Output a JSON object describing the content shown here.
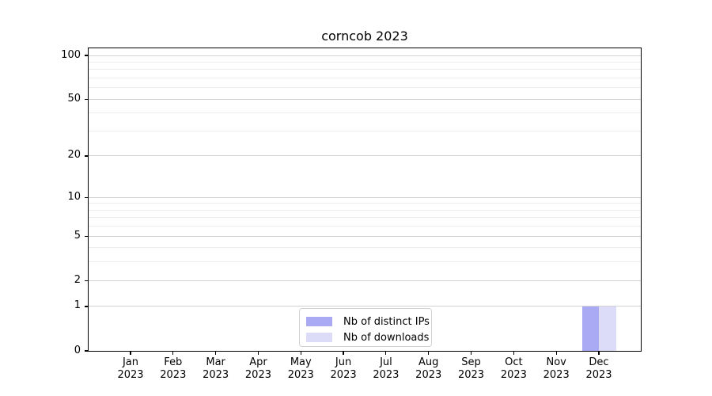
{
  "chart_data": {
    "type": "bar",
    "title": "corncob 2023",
    "categories": [
      "Jan",
      "Feb",
      "Mar",
      "Apr",
      "May",
      "Jun",
      "Jul",
      "Aug",
      "Sep",
      "Oct",
      "Nov",
      "Dec"
    ],
    "x_tick_year": "2023",
    "series": [
      {
        "name": "Nb of distinct IPs",
        "color": "#aaaaf4",
        "values": [
          0,
          0,
          0,
          0,
          0,
          0,
          0,
          0,
          0,
          0,
          0,
          1
        ]
      },
      {
        "name": "Nb of downloads",
        "color": "#dcdcf8",
        "values": [
          0,
          0,
          0,
          0,
          0,
          0,
          0,
          0,
          0,
          0,
          0,
          1
        ]
      }
    ],
    "xlabel": "",
    "ylabel": "",
    "yscale": "log1p",
    "ylim": [
      0,
      112
    ],
    "y_major_ticks": [
      0,
      1,
      2,
      5,
      10,
      20,
      50,
      100
    ],
    "y_minor_ticks": [
      3,
      4,
      6,
      7,
      8,
      9,
      30,
      40,
      60,
      70,
      80,
      90
    ],
    "grid": true,
    "legend_position": "lower-center"
  },
  "colors": {
    "background": "#ffffff",
    "spine": "#000000",
    "major_grid": "#d2d2d2",
    "minor_grid": "#ececec",
    "text": "#000000"
  }
}
